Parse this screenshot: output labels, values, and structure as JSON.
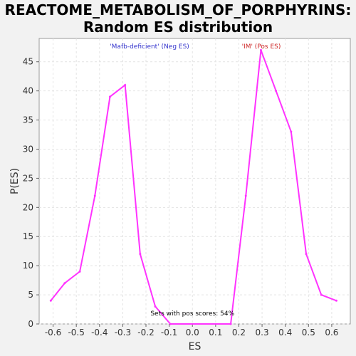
{
  "chart_data": {
    "type": "line",
    "title_line1": "REACTOME_METABOLISM_OF_PORPHYRINS:",
    "title_line2": "Random ES distribution",
    "xlabel": "ES",
    "ylabel": "P(ES)",
    "xlim": [
      -0.66,
      0.68
    ],
    "ylim": [
      0,
      49
    ],
    "x_ticks": [
      -0.6,
      -0.5,
      -0.4,
      -0.3,
      -0.2,
      -0.1,
      0.0,
      0.1,
      0.2,
      0.3,
      0.4,
      0.5,
      0.6
    ],
    "x_tick_labels": [
      "-0.6",
      "-0.5",
      "-0.4",
      "-0.3",
      "-0.2",
      "-0.1",
      "0.0",
      "0.1",
      "0.2",
      "0.3",
      "0.4",
      "0.5",
      "0.6"
    ],
    "y_ticks": [
      0,
      5,
      10,
      15,
      20,
      25,
      30,
      35,
      40,
      45
    ],
    "y_tick_labels": [
      "0",
      "5",
      "10",
      "15",
      "20",
      "25",
      "30",
      "35",
      "40",
      "45"
    ],
    "grid": true,
    "series": [
      {
        "color": "#ff33ff",
        "points": [
          [
            -0.61,
            4
          ],
          [
            -0.55,
            7
          ],
          [
            -0.485,
            9
          ],
          [
            -0.42,
            22
          ],
          [
            -0.355,
            39
          ],
          [
            -0.29,
            41
          ],
          [
            -0.225,
            12
          ],
          [
            -0.16,
            3
          ],
          [
            -0.095,
            0
          ],
          [
            0.165,
            0
          ],
          [
            0.23,
            22
          ],
          [
            0.295,
            47
          ],
          [
            0.36,
            40
          ],
          [
            0.425,
            33
          ],
          [
            0.49,
            12
          ],
          [
            0.555,
            5
          ],
          [
            0.62,
            4
          ]
        ]
      }
    ],
    "legend": {
      "neg_label": "'Mafb-deficient' (Neg ES)",
      "neg_color": "#3333cc",
      "pos_label": "'IM' (Pos ES)",
      "pos_color": "#cc2222"
    },
    "annotation": "Sets with pos scores: 54%"
  }
}
